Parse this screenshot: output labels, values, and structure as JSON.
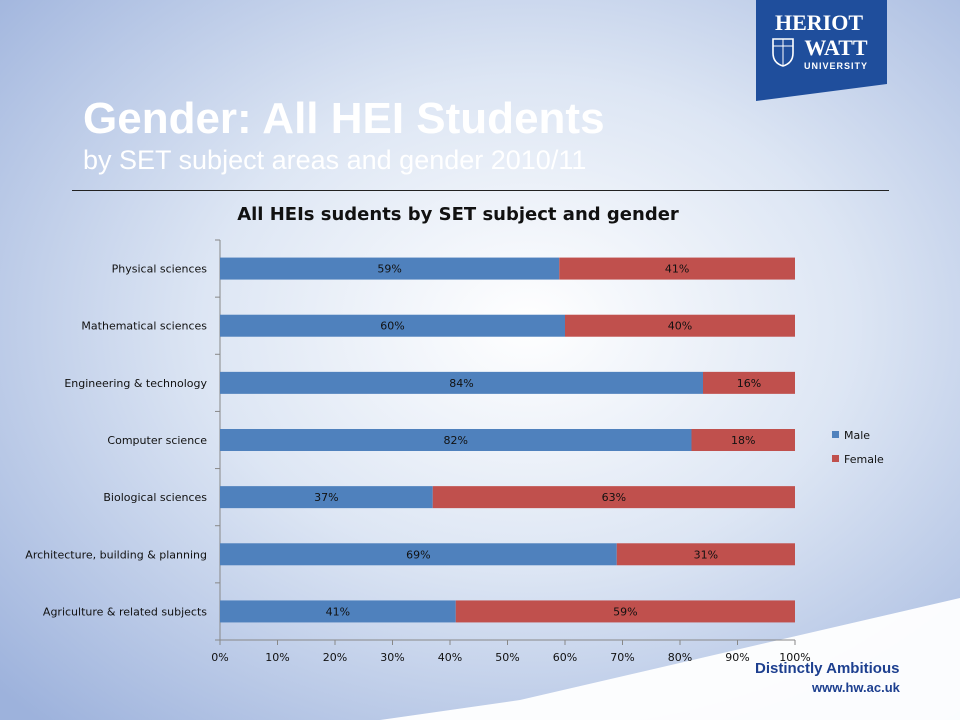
{
  "slide": {
    "title": "Gender: All HEI Students",
    "subtitle": "by SET subject areas and gender 2010/11",
    "tagline": "Distinctly Ambitious",
    "website": "www.hw.ac.uk",
    "logo_text": [
      "HERIOT",
      "WATT",
      "UNIVERSITY"
    ]
  },
  "colors": {
    "male": "#4f81bd",
    "female": "#c0504d",
    "logo_bg": "#1f4e9c"
  },
  "chart_data": {
    "type": "bar",
    "orientation": "horizontal",
    "stacked": "percent",
    "title": "All HEIs sudents by SET subject and gender",
    "categories": [
      "Physical sciences",
      "Mathematical sciences",
      "Engineering & technology",
      "Computer science",
      "Biological sciences",
      "Architecture, building & planning",
      "Agriculture & related subjects"
    ],
    "series": [
      {
        "name": "Male",
        "values": [
          59,
          60,
          84,
          82,
          37,
          69,
          41
        ],
        "labels": [
          "59%",
          "60%",
          "84%",
          "82%",
          "37%",
          "69%",
          "41%"
        ]
      },
      {
        "name": "Female",
        "values": [
          41,
          40,
          16,
          18,
          63,
          31,
          59
        ],
        "labels": [
          "41%",
          "40%",
          "16%",
          "18%",
          "63%",
          "31%",
          "59%"
        ]
      }
    ],
    "xlim": [
      0,
      100
    ],
    "xticks": [
      "0%",
      "10%",
      "20%",
      "30%",
      "40%",
      "50%",
      "60%",
      "70%",
      "80%",
      "90%",
      "100%"
    ],
    "legend": "right",
    "grid": false
  }
}
